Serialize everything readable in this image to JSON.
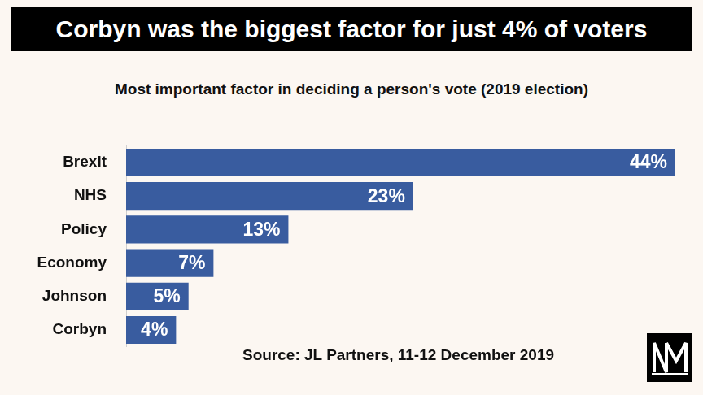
{
  "chart_data": {
    "type": "bar",
    "title": "Corbyn was the biggest factor for just 4% of voters",
    "subtitle": "Most important factor in deciding a person's vote (2019 election)",
    "source": "Source: JL Partners, 11-12 December 2019",
    "categories": [
      "Brexit",
      "NHS",
      "Policy",
      "Economy",
      "Johnson",
      "Corbyn"
    ],
    "values": [
      44,
      23,
      13,
      7,
      5,
      4
    ],
    "value_labels": [
      "44%",
      "23%",
      "13%",
      "7%",
      "5%",
      "4%"
    ],
    "color": "#395c9f",
    "orientation": "horizontal",
    "xlim": [
      0,
      44
    ],
    "grid": false,
    "data_labels": true,
    "tick_labels": "y"
  }
}
